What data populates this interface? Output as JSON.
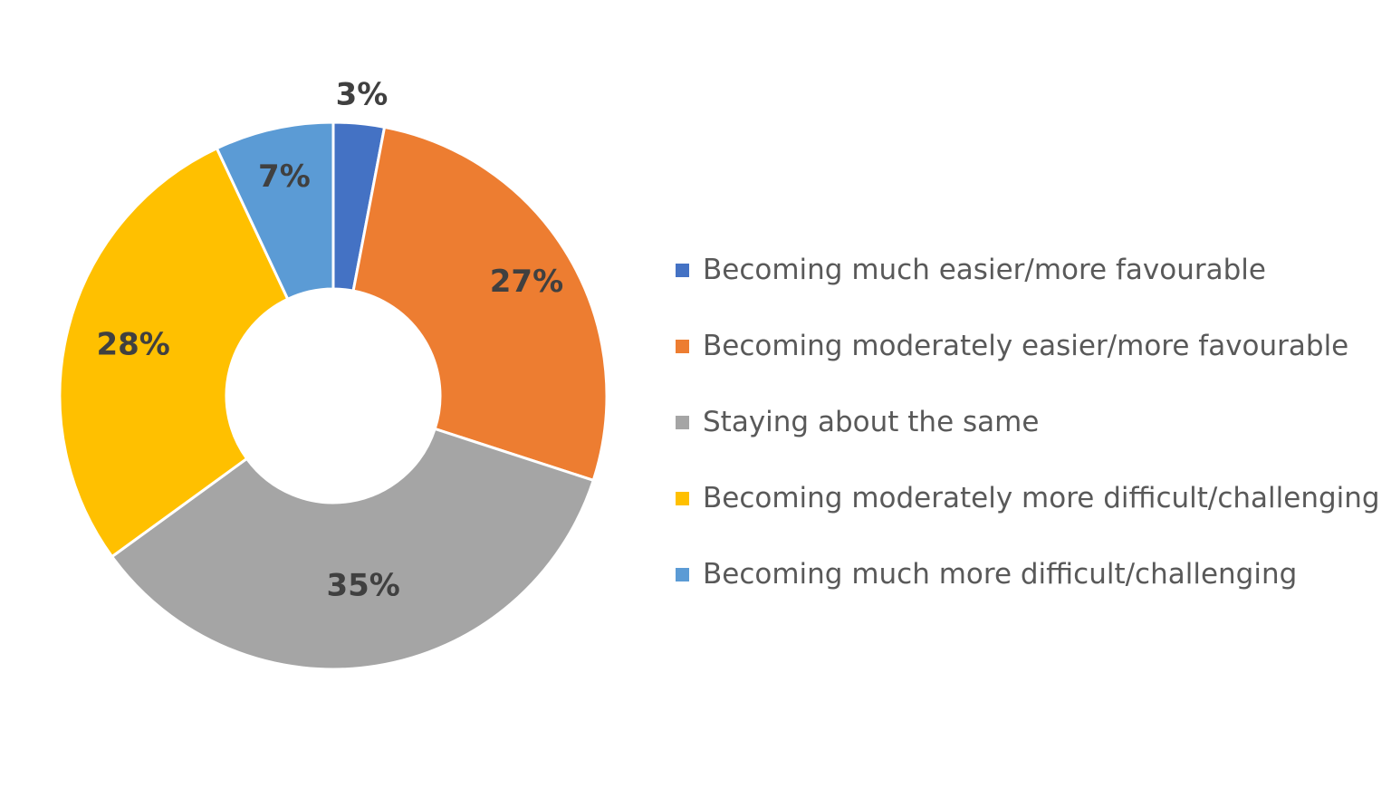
{
  "chart_data": {
    "type": "pie",
    "donut": true,
    "title": "",
    "series": [
      {
        "name": "Becoming much easier/more favourable",
        "value": 3,
        "label": "3%",
        "color": "#4472C4"
      },
      {
        "name": "Becoming moderately easier/more favourable",
        "value": 27,
        "label": "27%",
        "color": "#ED7D31"
      },
      {
        "name": "Staying about the same",
        "value": 35,
        "label": "35%",
        "color": "#A5A5A5"
      },
      {
        "name": "Becoming moderately more difficult/challenging",
        "value": 28,
        "label": "28%",
        "color": "#FFC000"
      },
      {
        "name": "Becoming much more difficult/challenging",
        "value": 7,
        "label": "7%",
        "color": "#5B9BD5"
      }
    ],
    "legend_position": "right",
    "start_angle": "top",
    "direction": "clockwise"
  }
}
